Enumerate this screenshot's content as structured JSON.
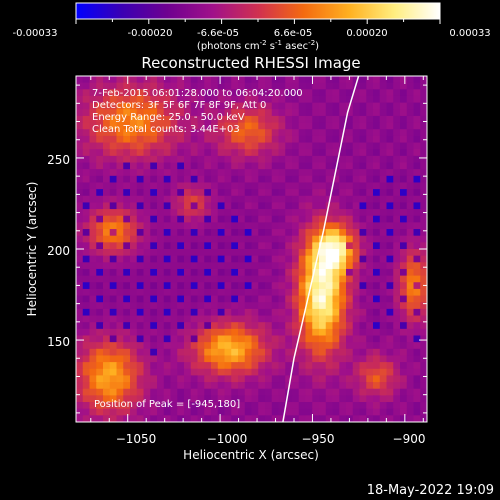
{
  "chart_data": {
    "type": "heatmap",
    "title": "Reconstructed RHESSI Image",
    "colorbar": {
      "ticks": [
        "-0.00033",
        "-0.00020",
        "-6.6e-05",
        "6.6e-05",
        "0.00020",
        "0.00033"
      ],
      "range": [
        -0.00033,
        0.00033
      ],
      "units_prefix": "(photons cm",
      "units_exp1": "-2",
      "units_mid": " s",
      "units_exp2": "-1",
      "units_mid2": " asec",
      "units_exp3": "-2",
      "units_suffix": ")",
      "colormap": [
        "#0000ff",
        "#3a00b4",
        "#6e0090",
        "#a0108a",
        "#d03050",
        "#f46a10",
        "#ffb020",
        "#ffee80",
        "#ffffff"
      ]
    },
    "annotations": {
      "line1": "7-Feb-2015 06:01:28.000 to 06:04:20.000",
      "line2": "Detectors: 3F 5F 6F 7F 8F 9F, Att 0",
      "line3": "Energy Range: 25.0 - 50.0 keV",
      "line4": "Clean     Total counts: 3.44E+03",
      "peak": "Position of Peak = [-945,180]"
    },
    "xlabel": "Heliocentric X (arcsec)",
    "ylabel": "Heliocentric Y (arcsec)",
    "xlim": [
      -1078,
      -888
    ],
    "ylim": [
      105,
      295
    ],
    "xticks": [
      -1050,
      -1000,
      -950,
      -900
    ],
    "xticklabels": [
      "−1050",
      "−1000",
      "−950",
      "−900"
    ],
    "yticks": [
      150,
      200,
      250
    ],
    "yticklabels": [
      "150",
      "200",
      "250"
    ],
    "peak_position": [
      -945,
      180
    ],
    "sources": [
      {
        "x": -945,
        "y": 175,
        "amp": 1.0,
        "sx": 9,
        "sy": 22
      },
      {
        "x": -937,
        "y": 200,
        "amp": 0.75,
        "sx": 8,
        "sy": 9
      },
      {
        "x": -995,
        "y": 145,
        "amp": 0.7,
        "sx": 14,
        "sy": 10
      },
      {
        "x": -1058,
        "y": 210,
        "amp": 0.55,
        "sx": 10,
        "sy": 9
      },
      {
        "x": -1060,
        "y": 130,
        "amp": 0.65,
        "sx": 12,
        "sy": 14
      },
      {
        "x": -1048,
        "y": 270,
        "amp": 0.55,
        "sx": 18,
        "sy": 14
      },
      {
        "x": -985,
        "y": 265,
        "amp": 0.45,
        "sx": 12,
        "sy": 10
      },
      {
        "x": -895,
        "y": 180,
        "amp": 0.55,
        "sx": 6,
        "sy": 14
      },
      {
        "x": -915,
        "y": 130,
        "amp": 0.4,
        "sx": 8,
        "sy": 8
      },
      {
        "x": -1015,
        "y": 225,
        "amp": 0.35,
        "sx": 7,
        "sy": 7
      }
    ],
    "limb_curve": {
      "x": [
        -966,
        -960,
        -952,
        -944,
        -937,
        -931,
        -925
      ],
      "y": [
        105,
        140,
        175,
        210,
        245,
        275,
        295
      ]
    }
  },
  "footer": {
    "date": "18-May-2022 19:09"
  }
}
